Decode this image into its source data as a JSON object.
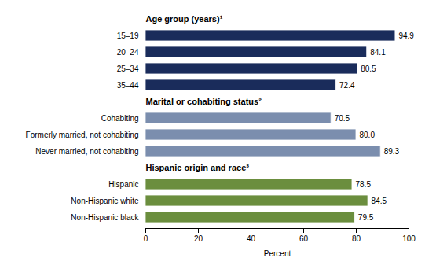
{
  "chart_data": {
    "type": "bar",
    "orientation": "horizontal",
    "xlabel": "Percent",
    "xlim": [
      0,
      100
    ],
    "xticks": [
      0,
      20,
      40,
      60,
      80,
      100
    ],
    "data_labels": true,
    "groups": [
      {
        "title": "Age group (years)¹",
        "color": "#1a2c5b",
        "categories": [
          "15–19",
          "20–24",
          "25–34",
          "35–44"
        ],
        "values": [
          94.9,
          84.1,
          80.5,
          72.4
        ],
        "value_labels": [
          "94.9",
          "84.1",
          "80.5",
          "72.4"
        ]
      },
      {
        "title": "Marital or cohabiting status²",
        "color": "#7b8eae",
        "categories": [
          "Cohabiting",
          "Formerly married, not cohabiting",
          "Never married, not cohabiting"
        ],
        "values": [
          70.5,
          80.0,
          89.3
        ],
        "value_labels": [
          "70.5",
          "80.0",
          "89.3"
        ]
      },
      {
        "title": "Hispanic origin and race³",
        "color": "#6b8e3e",
        "categories": [
          "Hispanic",
          "Non-Hispanic white",
          "Non-Hispanic black"
        ],
        "values": [
          78.5,
          84.5,
          79.5
        ],
        "value_labels": [
          "78.5",
          "84.5",
          "79.5"
        ]
      }
    ]
  }
}
